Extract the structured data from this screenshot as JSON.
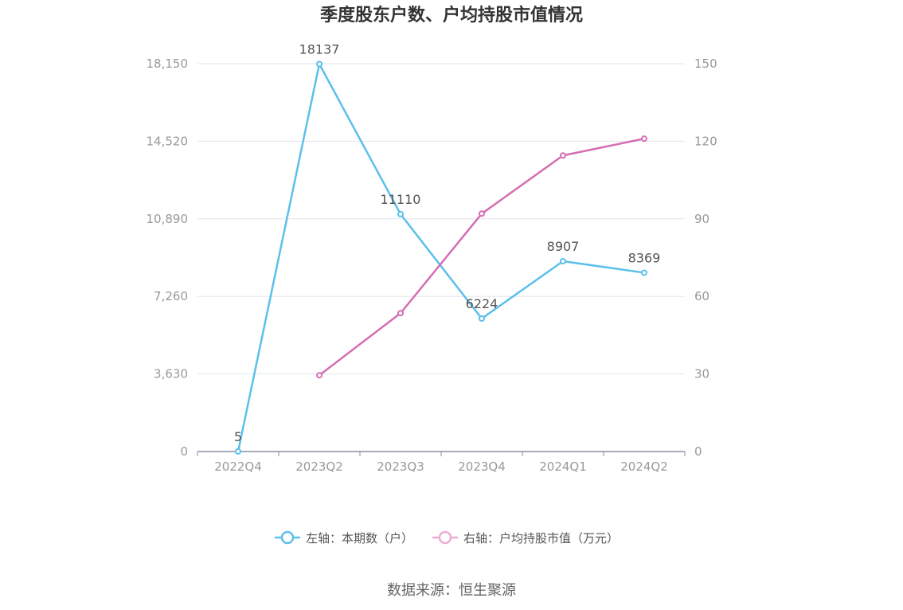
{
  "chart_data": {
    "type": "line",
    "title": "季度股东户数、户均持股市值情况",
    "categories": [
      "2022Q4",
      "2023Q2",
      "2023Q3",
      "2023Q4",
      "2024Q1",
      "2024Q2"
    ],
    "y_left": {
      "ticks": [
        "0",
        "3,630",
        "7,260",
        "10,890",
        "14,520",
        "18,150"
      ],
      "range": [
        0,
        18150
      ]
    },
    "y_right": {
      "ticks": [
        "0",
        "30",
        "60",
        "90",
        "120",
        "150"
      ],
      "range": [
        0,
        150
      ]
    },
    "grid": true,
    "legend_position": "bottom",
    "series": [
      {
        "name": "左轴：本期数（户）",
        "axis": "left",
        "color": "#5bc0eb",
        "values": [
          5,
          18137,
          11110,
          6224,
          8907,
          8369
        ],
        "labels": [
          "5",
          "18137",
          "11110",
          "6224",
          "8907",
          "8369"
        ]
      },
      {
        "name": "右轴：户均持股市值（万元）",
        "axis": "right",
        "color": "#d46eb3",
        "values": [
          null,
          29.5,
          53.5,
          92,
          114.5,
          121
        ]
      }
    ]
  },
  "source": "数据来源：恒生聚源",
  "colors": {
    "grid": "#e3e6ee",
    "axis": "#8a8fa3",
    "legend_right_icon": "#eeaad4"
  }
}
